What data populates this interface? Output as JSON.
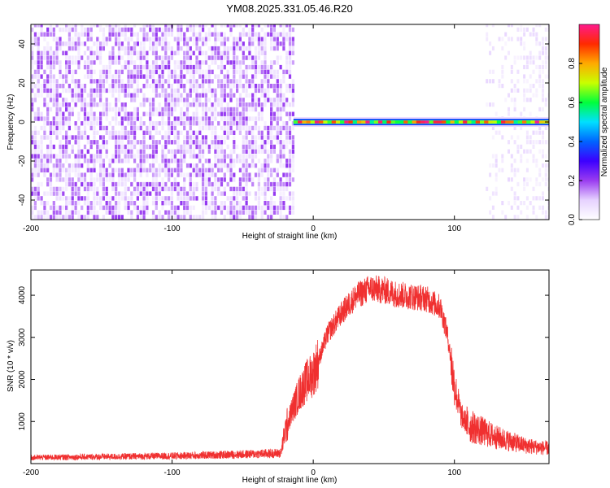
{
  "title": "YM08.2025.331.05.46.R20",
  "chart_data": [
    {
      "type": "heatmap",
      "xlabel": "Height of straight line (km)",
      "ylabel": "Frequency (Hz)",
      "xlim": [
        -200,
        167
      ],
      "ylim": [
        -50,
        50
      ],
      "xticks": [
        -200,
        -100,
        0,
        100
      ],
      "yticks": [
        -40,
        -20,
        0,
        20,
        40
      ],
      "colorbar": {
        "label": "Normalized spectral amplitude",
        "ticks": [
          "0.0",
          "0.2",
          "0.4",
          "0.6",
          "0.8"
        ],
        "range": [
          0,
          1
        ],
        "stops": [
          "#ffffff",
          "#e6d2ff",
          "#9a3cf0",
          "#3c00ff",
          "#0064ff",
          "#00e0ff",
          "#00ff3c",
          "#c8ff00",
          "#ffaa00",
          "#ff2a00",
          "#ff1a8c"
        ]
      },
      "regions": [
        {
          "description": "broadband noise",
          "x_range": [
            -200,
            -14
          ],
          "level": 0.12
        },
        {
          "description": "narrowband line",
          "x_range": [
            -14,
            167
          ],
          "frequency": 0,
          "level": 0.9
        },
        {
          "description": "sparse noise",
          "x_range": [
            120,
            167
          ],
          "level": 0.05
        }
      ]
    },
    {
      "type": "line",
      "xlabel": "Height of straight line (km)",
      "ylabel": "SNR (10 * v/v)",
      "xlim": [
        -200,
        167
      ],
      "ylim": [
        0,
        4600
      ],
      "xticks": [
        -200,
        -100,
        0,
        100
      ],
      "yticks": [
        1000,
        2000,
        3000,
        4000
      ],
      "series": [
        {
          "color": "#f03030",
          "x": [
            -200,
            -150,
            -100,
            -50,
            -23,
            -20,
            -15,
            -10,
            -5,
            0,
            5,
            10,
            20,
            30,
            40,
            50,
            60,
            70,
            80,
            90,
            95,
            100,
            105,
            110,
            120,
            130,
            140,
            150,
            160,
            167
          ],
          "values": [
            150,
            170,
            190,
            230,
            260,
            800,
            1300,
            1700,
            2000,
            2200,
            2600,
            3100,
            3600,
            4000,
            4200,
            4150,
            4050,
            4000,
            3950,
            3750,
            3100,
            1900,
            1150,
            950,
            800,
            650,
            550,
            450,
            400,
            380
          ]
        }
      ]
    }
  ]
}
